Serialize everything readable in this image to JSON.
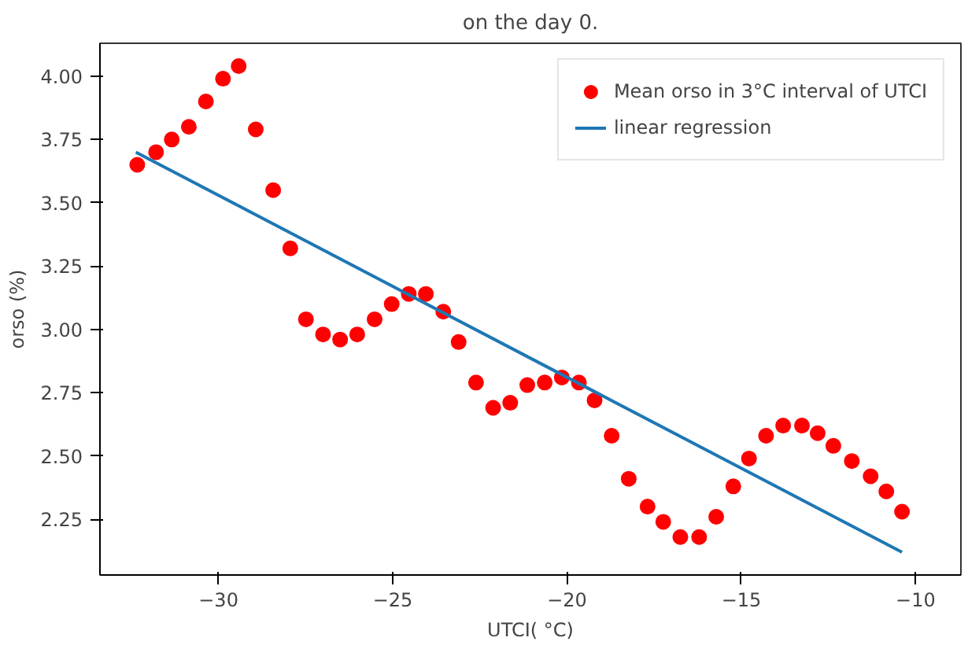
{
  "chart_data": {
    "type": "scatter",
    "title": "on the day 0.",
    "xlabel": "UTCI( °C)",
    "ylabel": "orso (%)",
    "xlim": [
      -33.4,
      -8.7
    ],
    "ylim": [
      2.03,
      4.13
    ],
    "xticks": [
      {
        "value": -30,
        "label": "−30"
      },
      {
        "value": -25,
        "label": "−25"
      },
      {
        "value": -20,
        "label": "−20"
      },
      {
        "value": -15,
        "label": "−15"
      },
      {
        "value": -10,
        "label": "−10"
      }
    ],
    "yticks": [
      {
        "value": 2.25,
        "label": "2.25"
      },
      {
        "value": 2.5,
        "label": "2.50"
      },
      {
        "value": 2.75,
        "label": "2.75"
      },
      {
        "value": 3.0,
        "label": "3.00"
      },
      {
        "value": 3.25,
        "label": "3.25"
      },
      {
        "value": 3.5,
        "label": "3.50"
      },
      {
        "value": 3.75,
        "label": "3.75"
      },
      {
        "value": 4.0,
        "label": "4.00"
      }
    ],
    "grid": false,
    "legend": "top right",
    "series": [
      {
        "name": "Mean orso in 3°C interval of UTCI",
        "marker": "circle",
        "color": "#ff0000",
        "x": [
          -32.33,
          -31.79,
          -31.34,
          -30.85,
          -30.36,
          -29.87,
          -29.42,
          -28.93,
          -28.43,
          -27.94,
          -27.49,
          -27.0,
          -26.51,
          -26.02,
          -25.52,
          -25.03,
          -24.54,
          -24.05,
          -23.55,
          -23.11,
          -22.61,
          -22.12,
          -21.63,
          -21.14,
          -20.64,
          -20.15,
          -19.66,
          -19.21,
          -18.72,
          -18.23,
          -17.69,
          -17.24,
          -16.75,
          -16.21,
          -15.72,
          -15.23,
          -14.78,
          -14.29,
          -13.8,
          -13.26,
          -12.81,
          -12.36,
          -11.83,
          -11.29,
          -10.84,
          -10.39
        ],
        "values": [
          3.65,
          3.7,
          3.75,
          3.8,
          3.9,
          3.99,
          4.04,
          3.79,
          3.55,
          3.32,
          3.04,
          2.98,
          2.96,
          2.98,
          3.04,
          3.1,
          3.14,
          3.14,
          3.07,
          2.95,
          2.79,
          2.69,
          2.71,
          2.78,
          2.79,
          2.81,
          2.79,
          2.72,
          2.58,
          2.41,
          2.3,
          2.24,
          2.18,
          2.18,
          2.26,
          2.38,
          2.49,
          2.58,
          2.62,
          2.62,
          2.59,
          2.54,
          2.48,
          2.42,
          2.36,
          2.28
        ]
      },
      {
        "name": "linear regression",
        "type": "line",
        "line_style": "solid",
        "color": "#1f77b4",
        "x": [
          -32.37,
          -10.39
        ],
        "values": [
          3.7,
          2.12
        ]
      }
    ]
  }
}
